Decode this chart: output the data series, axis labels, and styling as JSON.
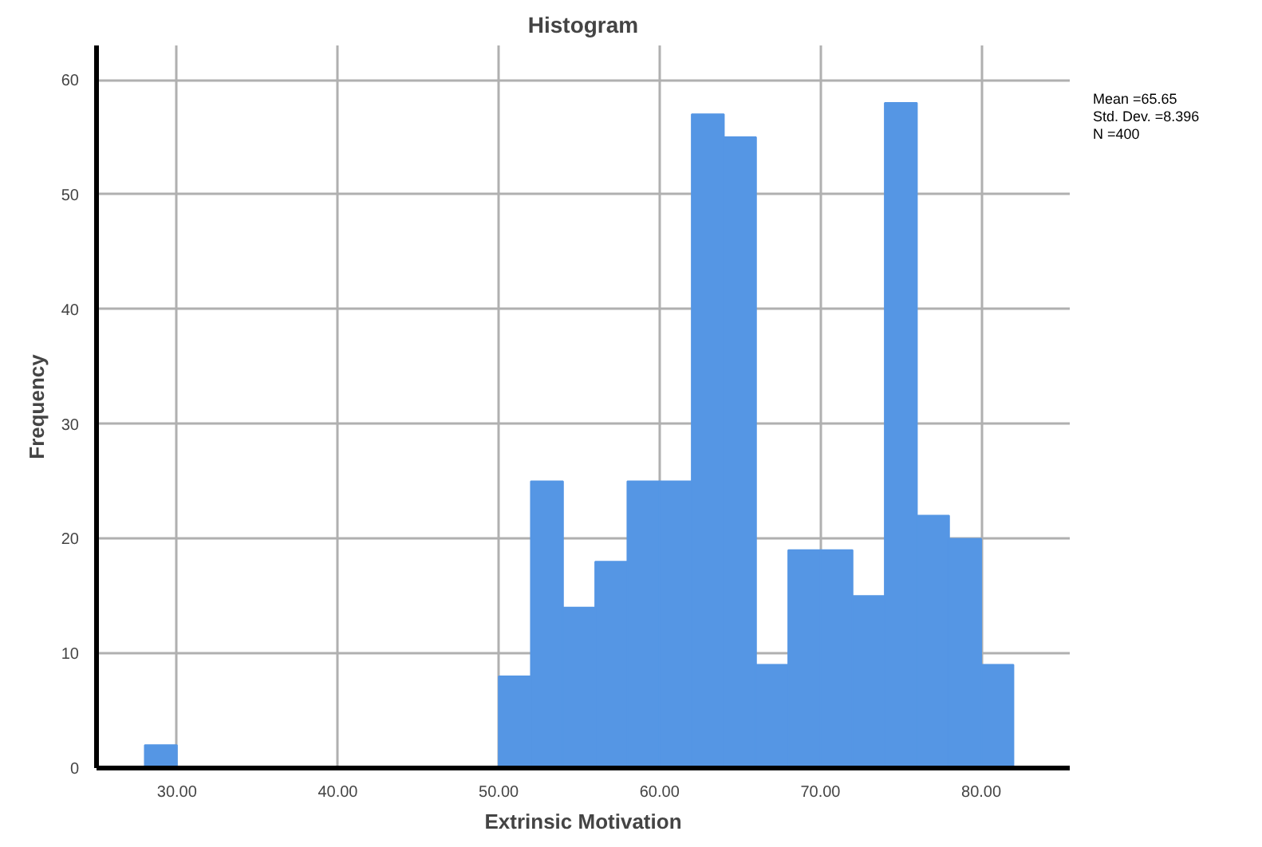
{
  "chart_data": {
    "type": "histogram",
    "title": "Histogram",
    "xlabel": "Extrinsic Motivation",
    "ylabel": "Frequency",
    "bins": [
      28,
      30,
      32,
      34,
      36,
      38,
      40,
      42,
      44,
      46,
      48,
      50,
      52,
      54,
      56,
      58,
      60,
      62,
      64,
      66,
      68,
      70,
      72,
      74,
      76,
      78,
      80,
      82
    ],
    "values": [
      2,
      0,
      0,
      0,
      0,
      0,
      0,
      0,
      0,
      0,
      0,
      8,
      25,
      14,
      18,
      25,
      25,
      57,
      55,
      9,
      19,
      19,
      15,
      58,
      22,
      20,
      9
    ],
    "color": "#5596e4",
    "xlim": [
      25,
      85.5
    ],
    "ylim": [
      0,
      63
    ],
    "xticks": [
      {
        "value": 30,
        "label": "30.00"
      },
      {
        "value": 40,
        "label": "40.00"
      },
      {
        "value": 50,
        "label": "50.00"
      },
      {
        "value": 60,
        "label": "60.00"
      },
      {
        "value": 70,
        "label": "70.00"
      },
      {
        "value": 80,
        "label": "80.00"
      }
    ],
    "yticks": [
      0,
      10,
      20,
      30,
      40,
      50,
      60
    ],
    "grid": true,
    "annotations": [
      "Mean =65.65",
      "Std. Dev. =8.396",
      "N =400"
    ]
  }
}
